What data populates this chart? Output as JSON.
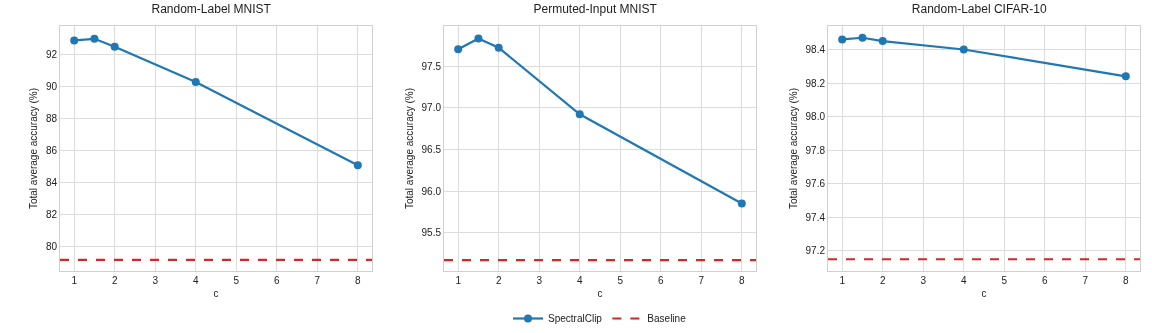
{
  "chart_data": [
    {
      "type": "line",
      "title": "Random-Label MNIST",
      "xlabel": "c",
      "ylabel": "Total average accuracy (%)",
      "x": [
        1,
        1.5,
        2,
        4,
        8
      ],
      "series": [
        {
          "color": "#1f77b4",
          "values": [
            92.9,
            93.0,
            92.5,
            90.3,
            85.1
          ]
        }
      ],
      "ref_lines": [
        {
          "axis": "y",
          "value": 79.2,
          "color": "#d62728",
          "line_style": "dashed"
        }
      ],
      "xlim": [
        0.65,
        8.35
      ],
      "xticks": [
        1,
        2,
        3,
        4,
        5,
        6,
        7,
        8
      ],
      "ylim": [
        78.5,
        93.8
      ],
      "yticks": [
        80,
        82,
        84,
        86,
        88,
        90,
        92
      ],
      "grid": true,
      "marker": "circle",
      "line_style": "solid",
      "legend": false
    },
    {
      "type": "line",
      "title": "Permuted-Input MNIST",
      "xlabel": "c",
      "ylabel": "Total average accuracy (%)",
      "x": [
        1,
        1.5,
        2,
        4,
        8
      ],
      "series": [
        {
          "name": "SpectralClip",
          "color": "#1f77b4",
          "values": [
            97.7,
            97.83,
            97.72,
            96.92,
            95.85
          ]
        }
      ],
      "ref_lines": [
        {
          "axis": "y",
          "value": 95.17,
          "label": "Baseline",
          "color": "#d62728",
          "line_style": "dashed"
        }
      ],
      "xlim": [
        0.65,
        8.35
      ],
      "xticks": [
        1,
        2,
        3,
        4,
        5,
        6,
        7,
        8
      ],
      "ylim": [
        95.04,
        97.98
      ],
      "yticks": [
        {
          "value": 95.5,
          "label": "95.5"
        },
        {
          "value": 96,
          "label": "96.0"
        },
        {
          "value": 96.5,
          "label": "96.5"
        },
        {
          "value": 97,
          "label": "97.0"
        },
        {
          "value": 97.5,
          "label": "97.5"
        }
      ],
      "grid": true,
      "marker": "circle",
      "line_style": "solid",
      "legend": "bottom"
    },
    {
      "type": "line",
      "title": "Random-Label CIFAR-10",
      "xlabel": "c",
      "ylabel": "Total average accuracy (%)",
      "x": [
        1,
        1.5,
        2,
        4,
        8
      ],
      "series": [
        {
          "color": "#1f77b4",
          "values": [
            98.46,
            98.47,
            98.45,
            98.4,
            98.24
          ]
        }
      ],
      "ref_lines": [
        {
          "axis": "y",
          "value": 97.15,
          "color": "#d62728",
          "line_style": "dashed"
        }
      ],
      "xlim": [
        0.65,
        8.35
      ],
      "xticks": [
        1,
        2,
        3,
        4,
        5,
        6,
        7,
        8
      ],
      "ylim": [
        97.08,
        98.54
      ],
      "yticks": [
        {
          "value": 97.2,
          "label": "97.2"
        },
        {
          "value": 97.4,
          "label": "97.4"
        },
        {
          "value": 97.6,
          "label": "97.6"
        },
        {
          "value": 97.8,
          "label": "97.8"
        },
        {
          "value": 98,
          "label": "98.0"
        },
        {
          "value": 98.2,
          "label": "98.2"
        },
        {
          "value": 98.4,
          "label": "98.4"
        }
      ],
      "grid": true,
      "marker": "circle",
      "line_style": "solid",
      "legend": false
    }
  ]
}
